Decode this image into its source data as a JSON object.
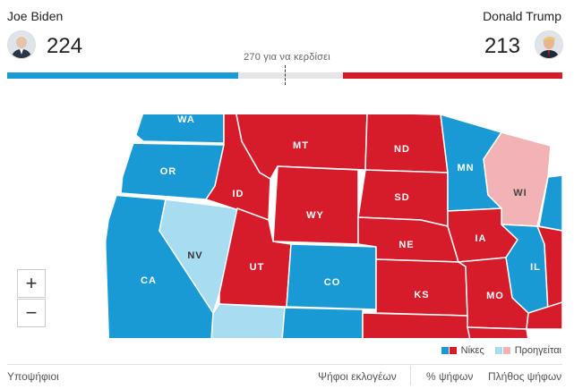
{
  "candidates": {
    "left": {
      "name": "Joe Biden",
      "electoral_votes": "224",
      "color": "#1a9ad5"
    },
    "right": {
      "name": "Donald Trump",
      "electoral_votes": "213",
      "color": "#d61c2a"
    }
  },
  "threshold_label": "270 για να κερδίσει",
  "progress": {
    "biden_votes": 224,
    "trump_votes": 213,
    "threshold": 270,
    "total": 538
  },
  "map": {
    "states": [
      {
        "abbr": "WA",
        "status": "win",
        "party": "dem"
      },
      {
        "abbr": "OR",
        "status": "win",
        "party": "dem"
      },
      {
        "abbr": "CA",
        "status": "win",
        "party": "dem"
      },
      {
        "abbr": "NV",
        "status": "lead",
        "party": "dem"
      },
      {
        "abbr": "ID",
        "status": "win",
        "party": "rep"
      },
      {
        "abbr": "MT",
        "status": "win",
        "party": "rep"
      },
      {
        "abbr": "WY",
        "status": "win",
        "party": "rep"
      },
      {
        "abbr": "UT",
        "status": "win",
        "party": "rep"
      },
      {
        "abbr": "CO",
        "status": "win",
        "party": "dem"
      },
      {
        "abbr": "ND",
        "status": "win",
        "party": "rep"
      },
      {
        "abbr": "SD",
        "status": "win",
        "party": "rep"
      },
      {
        "abbr": "NE",
        "status": "win",
        "party": "rep"
      },
      {
        "abbr": "KS",
        "status": "win",
        "party": "rep"
      },
      {
        "abbr": "MN",
        "status": "win",
        "party": "dem"
      },
      {
        "abbr": "IA",
        "status": "win",
        "party": "rep"
      },
      {
        "abbr": "MO",
        "status": "win",
        "party": "rep"
      },
      {
        "abbr": "WI",
        "status": "lead",
        "party": "rep"
      },
      {
        "abbr": "IL",
        "status": "win",
        "party": "dem"
      }
    ],
    "colors": {
      "dem_win": "#1a9ad5",
      "dem_lead": "#a8dcf1",
      "rep_win": "#d61c2a",
      "rep_lead": "#f2b3b7"
    }
  },
  "zoom": {
    "in_label": "+",
    "out_label": "−"
  },
  "legend": {
    "wins_label": "Νίκες",
    "leads_label": "Προηγείται"
  },
  "table_header": {
    "candidates": "Υποψήφιοι",
    "electoral_votes": "Ψήφοι εκλογέων",
    "vote_pct": "% ψήφων",
    "vote_count": "Πλήθος ψήφων"
  }
}
